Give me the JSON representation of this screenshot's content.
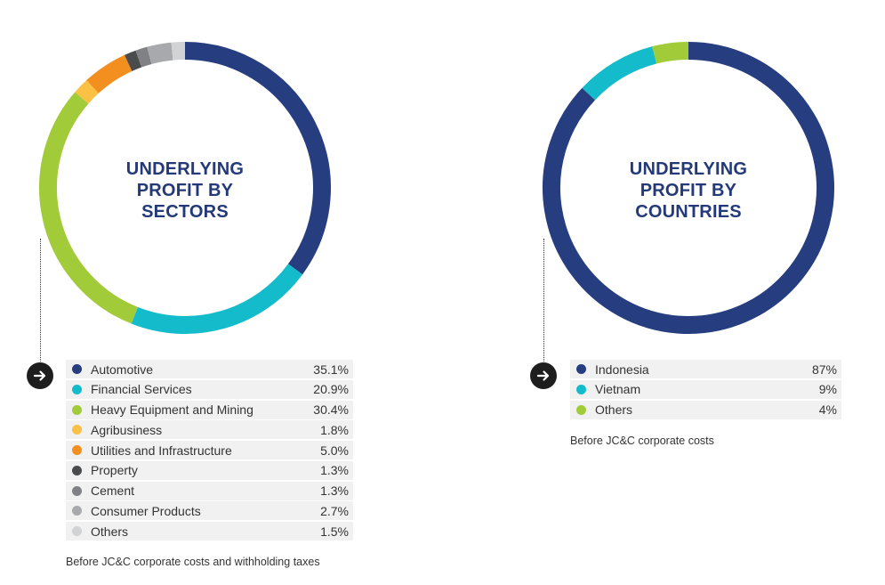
{
  "chart_data": [
    {
      "type": "pie",
      "title": "UNDERLYING PROFIT BY SECTORS",
      "title_lines": [
        "UNDERLYING",
        "PROFIT BY",
        "SECTORS"
      ],
      "unit": "%",
      "categories": [
        "Automotive",
        "Financial Services",
        "Heavy Equipment and Mining",
        "Agribusiness",
        "Utilities and Infrastructure",
        "Property",
        "Cement",
        "Consumer Products",
        "Others"
      ],
      "values": [
        35.1,
        20.9,
        30.4,
        1.8,
        5.0,
        1.3,
        1.3,
        2.7,
        1.5
      ],
      "value_labels": [
        "35.1%",
        "20.9%",
        "30.4%",
        "1.8%",
        "5.0%",
        "1.3%",
        "1.3%",
        "2.7%",
        "1.5%"
      ],
      "colors": [
        "#263d80",
        "#14bccb",
        "#a2cb39",
        "#fbc144",
        "#f28f1f",
        "#4a4b4d",
        "#808184",
        "#a8a9ac",
        "#d2d3d5"
      ],
      "footnote": "Before JC&C corporate costs and withholding taxes"
    },
    {
      "type": "pie",
      "title": "UNDERLYING PROFIT BY COUNTRIES",
      "title_lines": [
        "UNDERLYING",
        "PROFIT BY",
        "COUNTRIES"
      ],
      "unit": "%",
      "categories": [
        "Indonesia",
        "Vietnam",
        "Others"
      ],
      "values": [
        87,
        9,
        4
      ],
      "value_labels": [
        "87%",
        "9%",
        "4%"
      ],
      "colors": [
        "#263d80",
        "#14bccb",
        "#a2cb39"
      ],
      "footnote": "Before JC&C corporate costs"
    }
  ]
}
